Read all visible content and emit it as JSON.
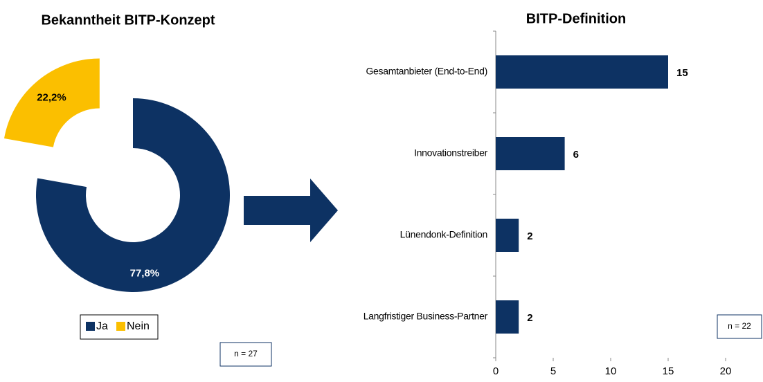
{
  "chart_data": [
    {
      "type": "donut",
      "title": "Bekanntheit BITP-Konzept",
      "categories": [
        "Ja",
        "Nein"
      ],
      "values": [
        77.8,
        22.2
      ],
      "value_labels": [
        "77,8%",
        "22,2%"
      ],
      "colors": [
        "#0d3263",
        "#fbbf00"
      ],
      "legend": "bottom",
      "annotation": "n = 27"
    },
    {
      "type": "bar",
      "orientation": "horizontal",
      "title": "BITP-Definition",
      "categories": [
        "Gesamtanbieter (End-to-End)",
        "Innovationstreiber",
        "Lünendonk-Definition",
        "Langfristiger Business-Partner"
      ],
      "values": [
        15,
        6,
        2,
        2
      ],
      "color": "#0d3263",
      "xlim": [
        0,
        20
      ],
      "xticks": [
        0,
        5,
        10,
        15,
        20
      ],
      "annotation": "n = 22"
    }
  ]
}
